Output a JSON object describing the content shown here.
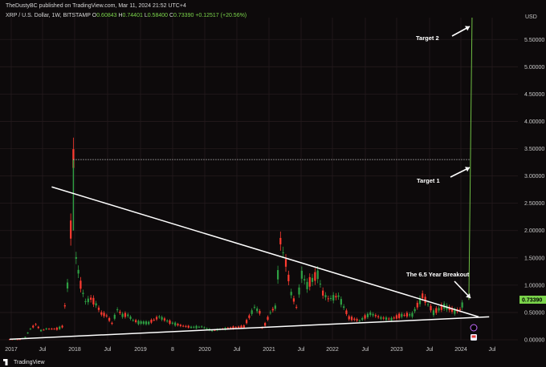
{
  "header": {
    "publisher_line": "TheDustyBC published on TradingView.com, Mar 11, 2024 21:52 UTC+4",
    "symbol": "XRP / U.S. Dollar, 1W, BITSTAMP",
    "open_label": "O",
    "open_value": "0.60843",
    "high_label": "H",
    "high_value": "0.74401",
    "low_label": "L",
    "low_value": "0.58400",
    "close_label": "C",
    "close_value": "0.73390",
    "change_value": "+0.12517 (+20.56%)"
  },
  "footer": {
    "brand": "TradingView"
  },
  "colors": {
    "background": "#0d0a0b",
    "grid": "#241b1d",
    "axis_text": "#c9c9c9",
    "up_candle": "#2ea043",
    "down_candle": "#ff3b30",
    "projection": "#6fbf44",
    "price_badge": "#7bd54b",
    "annotation": "#ffffff"
  },
  "icons": {
    "logo": "tradingview-logo-icon",
    "marker_1": "event-marker-icon",
    "marker_2": "news-marker-icon"
  },
  "chart_data": {
    "type": "candlestick",
    "title": "XRP / U.S. Dollar, 1W, BITSTAMP",
    "currency": "USD",
    "last_price": "0.73390",
    "ylim": [
      0,
      5.9
    ],
    "y_ticks": [
      "0.00000",
      "0.50000",
      "1.00000",
      "1.50000",
      "2.00000",
      "2.50000",
      "3.00000",
      "3.50000",
      "4.00000",
      "4.50000",
      "5.00000",
      "5.50000"
    ],
    "x_ticks": [
      "2017",
      "Jul",
      "2018",
      "Jul",
      "2019",
      "8",
      "2020",
      "Jul",
      "2021",
      "Jul",
      "2022",
      "Jul",
      "2023",
      "Jul",
      "2024",
      "Jul"
    ],
    "date_range": [
      "2017-01-01",
      "2024-12-31"
    ],
    "annotations": {
      "target_2": "Target 2",
      "target_1": "Target 1",
      "breakout": "The 6.5 Year Breakout"
    },
    "trendlines": [
      {
        "name": "upper",
        "points": [
          [
            "2017-09-01",
            2.8
          ],
          [
            "2024-06-01",
            0.42
          ]
        ]
      },
      {
        "name": "lower",
        "points": [
          [
            "2017-01-01",
            0.01
          ],
          [
            "2024-08-01",
            0.42
          ]
        ]
      }
    ],
    "target_1_level": 3.3,
    "target_2_level": 5.9,
    "projection_x": "2024-04-15",
    "series": [
      {
        "name": "XRP",
        "weekly_close": [
          [
            "2017-01-01",
            0.006
          ],
          [
            "2017-02-01",
            0.007
          ],
          [
            "2017-03-01",
            0.01
          ],
          [
            "2017-04-01",
            0.05
          ],
          [
            "2017-05-01",
            0.2
          ],
          [
            "2017-06-01",
            0.28
          ],
          [
            "2017-07-01",
            0.17
          ],
          [
            "2017-08-01",
            0.2
          ],
          [
            "2017-09-01",
            0.2
          ],
          [
            "2017-10-01",
            0.2
          ],
          [
            "2017-11-01",
            0.24
          ],
          [
            "2017-12-01",
            1.0
          ],
          [
            "2017-12-20",
            2.0
          ],
          [
            "2018-01-04",
            3.3
          ],
          [
            "2018-01-20",
            1.5
          ],
          [
            "2018-02-15",
            1.0
          ],
          [
            "2018-03-15",
            0.7
          ],
          [
            "2018-04-15",
            0.75
          ],
          [
            "2018-05-15",
            0.65
          ],
          [
            "2018-06-15",
            0.48
          ],
          [
            "2018-07-15",
            0.44
          ],
          [
            "2018-08-15",
            0.3
          ],
          [
            "2018-09-15",
            0.55
          ],
          [
            "2018-10-15",
            0.45
          ],
          [
            "2018-11-15",
            0.45
          ],
          [
            "2018-12-15",
            0.36
          ],
          [
            "2019-01-15",
            0.32
          ],
          [
            "2019-03-15",
            0.31
          ],
          [
            "2019-05-15",
            0.42
          ],
          [
            "2019-07-15",
            0.32
          ],
          [
            "2019-09-15",
            0.26
          ],
          [
            "2019-11-15",
            0.23
          ],
          [
            "2020-01-15",
            0.24
          ],
          [
            "2020-03-15",
            0.17
          ],
          [
            "2020-05-15",
            0.2
          ],
          [
            "2020-07-15",
            0.22
          ],
          [
            "2020-09-15",
            0.24
          ],
          [
            "2020-11-15",
            0.6
          ],
          [
            "2020-12-15",
            0.5
          ],
          [
            "2020-12-29",
            0.22
          ],
          [
            "2021-01-15",
            0.28
          ],
          [
            "2021-02-15",
            0.5
          ],
          [
            "2021-03-15",
            0.6
          ],
          [
            "2021-04-14",
            1.8
          ],
          [
            "2021-05-15",
            1.4
          ],
          [
            "2021-06-15",
            0.85
          ],
          [
            "2021-07-15",
            0.6
          ],
          [
            "2021-08-15",
            1.2
          ],
          [
            "2021-09-15",
            1.0
          ],
          [
            "2021-10-15",
            1.1
          ],
          [
            "2021-11-15",
            1.2
          ],
          [
            "2021-12-15",
            0.85
          ],
          [
            "2022-01-15",
            0.75
          ],
          [
            "2022-03-15",
            0.8
          ],
          [
            "2022-05-15",
            0.4
          ],
          [
            "2022-07-15",
            0.35
          ],
          [
            "2022-09-15",
            0.48
          ],
          [
            "2022-11-15",
            0.4
          ],
          [
            "2023-01-15",
            0.38
          ],
          [
            "2023-03-15",
            0.45
          ],
          [
            "2023-05-15",
            0.46
          ],
          [
            "2023-07-13",
            0.8
          ],
          [
            "2023-09-15",
            0.5
          ],
          [
            "2023-11-15",
            0.62
          ],
          [
            "2024-01-15",
            0.52
          ],
          [
            "2024-02-15",
            0.55
          ],
          [
            "2024-03-11",
            0.7339
          ]
        ]
      }
    ]
  }
}
